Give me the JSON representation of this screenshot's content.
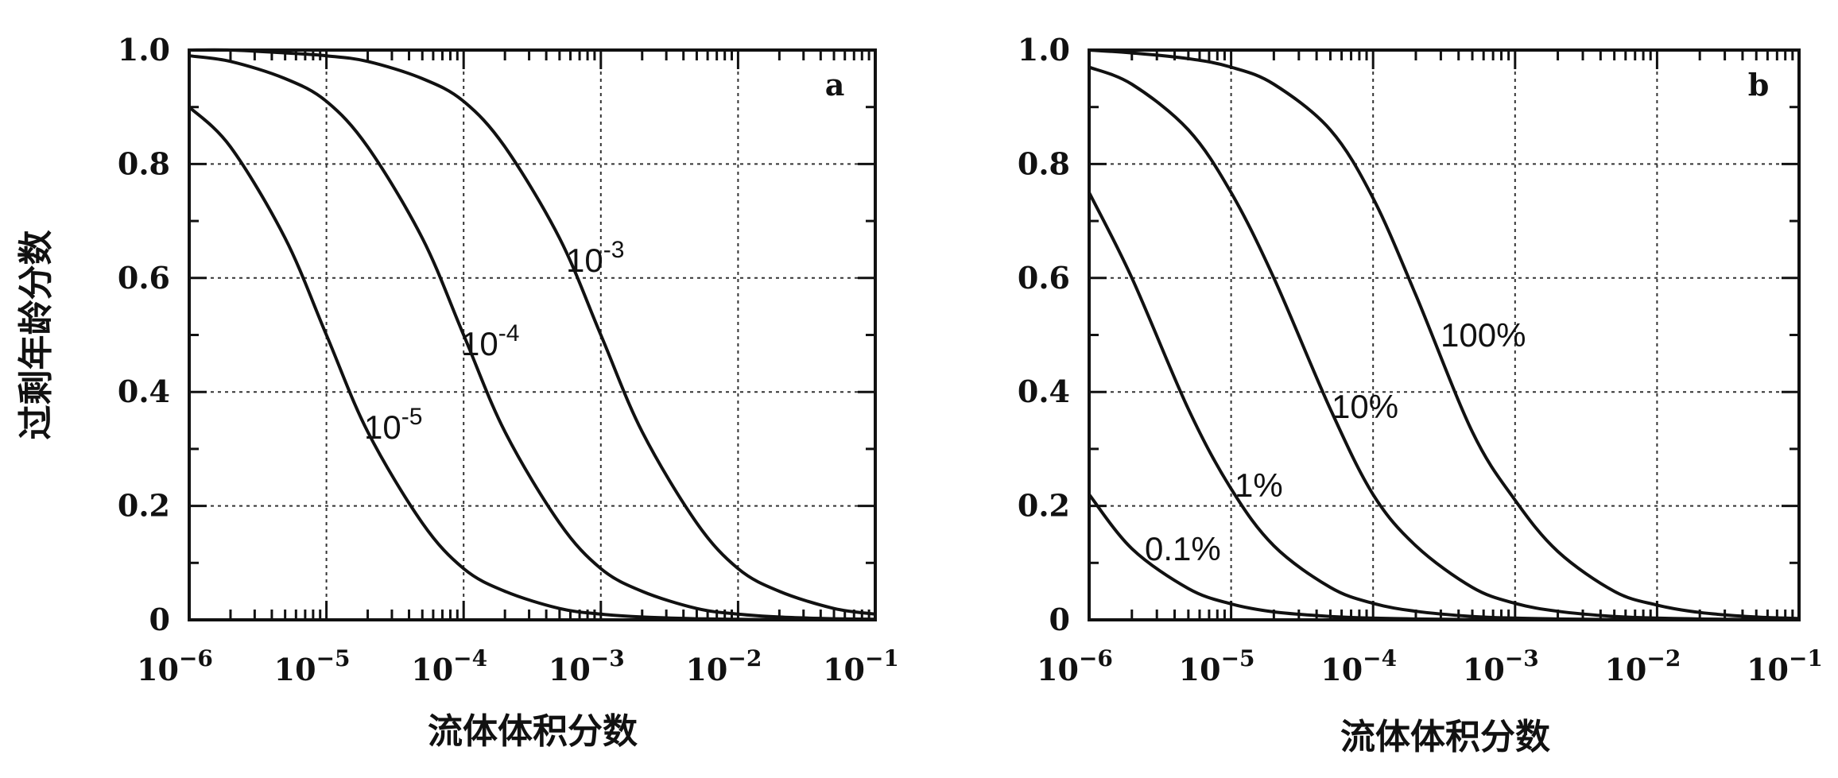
{
  "chart_data": [
    {
      "type": "line",
      "panel_label": "a",
      "xlabel": "流体体积分数",
      "ylabel": "过剩年龄分数",
      "xscale": "log",
      "xlim": [
        1e-06,
        0.1
      ],
      "ylim": [
        0,
        1
      ],
      "grid": true,
      "x_tick_labels": [
        {
          "base": "10",
          "exp": "−6"
        },
        {
          "base": "10",
          "exp": "−5"
        },
        {
          "base": "10",
          "exp": "−4"
        },
        {
          "base": "10",
          "exp": "−3"
        },
        {
          "base": "10",
          "exp": "−2"
        },
        {
          "base": "10",
          "exp": "−1"
        }
      ],
      "y_tick_labels": [
        "0",
        "0.2",
        "0.4",
        "0.6",
        "0.8",
        "1.0"
      ],
      "x": [
        1e-06,
        2e-06,
        5e-06,
        1e-05,
        2e-05,
        5e-05,
        0.0001,
        0.0002,
        0.0005,
        0.001,
        0.002,
        0.005,
        0.01,
        0.02,
        0.05,
        0.1
      ],
      "series": [
        {
          "label_base": "10",
          "label_exp": "-5",
          "values": [
            0.9,
            0.83,
            0.67,
            0.5,
            0.33,
            0.17,
            0.09,
            0.05,
            0.02,
            0.01,
            0.005,
            0.002,
            0.001,
            0.0005,
            0.0002,
            0.0001
          ]
        },
        {
          "label_base": "10",
          "label_exp": "-4",
          "values": [
            0.99,
            0.98,
            0.95,
            0.91,
            0.83,
            0.67,
            0.5,
            0.33,
            0.17,
            0.09,
            0.05,
            0.02,
            0.01,
            0.005,
            0.002,
            0.001
          ]
        },
        {
          "label_base": "10",
          "label_exp": "-3",
          "values": [
            1.0,
            1.0,
            0.995,
            0.99,
            0.98,
            0.95,
            0.91,
            0.83,
            0.67,
            0.5,
            0.33,
            0.17,
            0.09,
            0.05,
            0.02,
            0.01
          ]
        }
      ]
    },
    {
      "type": "line",
      "panel_label": "b",
      "xlabel": "流体体积分数",
      "ylabel": "",
      "xscale": "log",
      "xlim": [
        1e-06,
        0.1
      ],
      "ylim": [
        0,
        1
      ],
      "grid": true,
      "x_tick_labels": [
        {
          "base": "10",
          "exp": "−6"
        },
        {
          "base": "10",
          "exp": "−5"
        },
        {
          "base": "10",
          "exp": "−4"
        },
        {
          "base": "10",
          "exp": "−3"
        },
        {
          "base": "10",
          "exp": "−2"
        },
        {
          "base": "10",
          "exp": "−1"
        }
      ],
      "y_tick_labels": [
        "0",
        "0.2",
        "0.4",
        "0.6",
        "0.8",
        "1.0"
      ],
      "x": [
        1e-06,
        2e-06,
        5e-06,
        1e-05,
        2e-05,
        5e-05,
        0.0001,
        0.0002,
        0.0005,
        0.001,
        0.002,
        0.005,
        0.01,
        0.02,
        0.05,
        0.1
      ],
      "series": [
        {
          "label": "0.1%",
          "values": [
            0.22,
            0.125,
            0.055,
            0.028,
            0.014,
            0.006,
            0.003,
            0.0015,
            0.0006,
            0.0003,
            0.0002,
            0.0001,
            0.0001,
            0.0,
            0.0,
            0.0
          ]
        },
        {
          "label": "1%",
          "values": [
            0.75,
            0.6,
            0.37,
            0.23,
            0.13,
            0.057,
            0.029,
            0.015,
            0.006,
            0.003,
            0.0015,
            0.0006,
            0.0003,
            0.0002,
            0.0001,
            0.0
          ]
        },
        {
          "label": "10%",
          "values": [
            0.97,
            0.94,
            0.86,
            0.75,
            0.6,
            0.37,
            0.22,
            0.13,
            0.057,
            0.029,
            0.015,
            0.006,
            0.003,
            0.0015,
            0.0006,
            0.0003
          ]
        },
        {
          "label": "100%",
          "values": [
            1.0,
            0.995,
            0.985,
            0.97,
            0.94,
            0.86,
            0.74,
            0.57,
            0.33,
            0.21,
            0.12,
            0.05,
            0.026,
            0.013,
            0.005,
            0.0025
          ]
        }
      ]
    }
  ]
}
